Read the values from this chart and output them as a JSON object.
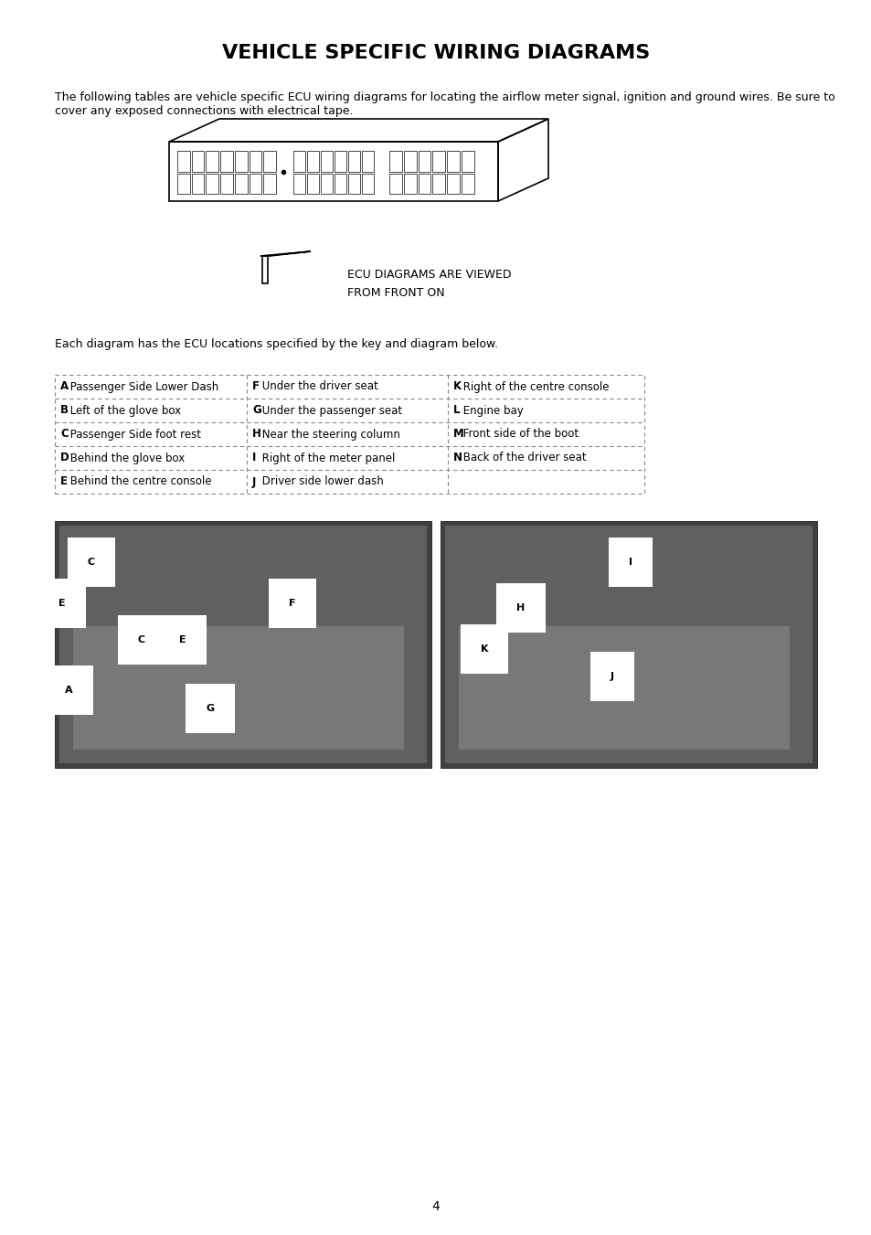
{
  "title": "VEHICLE SPECIFIC WIRING DIAGRAMS",
  "intro_text": "The following tables are vehicle specific ECU wiring diagrams for locating the airflow meter signal, ignition and ground wires. Be sure to\ncover any exposed connections with electrical tape.",
  "ecu_label_line1": "ECU DIAGRAMS ARE VIEWED",
  "ecu_label_line2": "FROM FRONT ON",
  "key_intro": "Each diagram has the ECU locations specified by the key and diagram below.",
  "table_rows": [
    [
      "A Passenger Side Lower Dash",
      "F Under the driver seat",
      "K Right of the centre console"
    ],
    [
      "B Left of the glove box",
      "G Under the passenger seat",
      "L Engine bay"
    ],
    [
      "C Passenger Side foot rest",
      "H Near the steering column",
      "M Front side of the boot"
    ],
    [
      "D Behind the glove box",
      "I Right of the meter panel",
      "N Back of the driver seat"
    ],
    [
      "E Behind the centre console",
      "J Driver side lower dash",
      ""
    ]
  ],
  "page_number": "4",
  "bg_color": "#ffffff",
  "text_color": "#000000",
  "table_border_color": "#aaaaaa"
}
